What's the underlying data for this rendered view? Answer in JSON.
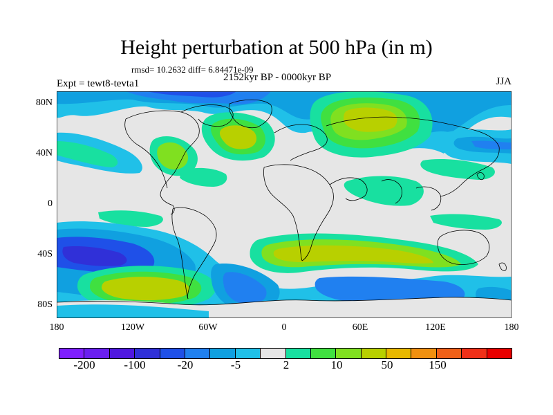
{
  "title": "Height perturbation at 500 hPa (in m)",
  "stats": "rmsd= 10.2632 diff= 6.84471e-09",
  "left_label": "Expt = tewt8-tevta1",
  "center_label": "2152kyr BP - 0000kyr BP",
  "right_label": "JJA",
  "y_axis_labels": [
    "80N",
    "40N",
    "0",
    "40S",
    "80S"
  ],
  "x_axis_labels": [
    "180",
    "120W",
    "60W",
    "0",
    "60E",
    "120E",
    "180"
  ],
  "colorbar": {
    "colors": [
      "#7f1fff",
      "#6a1ff0",
      "#5018e0",
      "#3030d8",
      "#1f50e8",
      "#2080f0",
      "#10a0e0",
      "#20c0e8",
      "#e6e6e6",
      "#18e0a0",
      "#40e040",
      "#80e020",
      "#b8d000",
      "#e8b800",
      "#f09010",
      "#f06018",
      "#f03018",
      "#e80000"
    ],
    "tick_labels": [
      "-200",
      "-100",
      "-20",
      "-5",
      "2",
      "10",
      "50",
      "150"
    ]
  },
  "colors": {
    "background": "#e6e6e6",
    "coastline": "#000000"
  }
}
